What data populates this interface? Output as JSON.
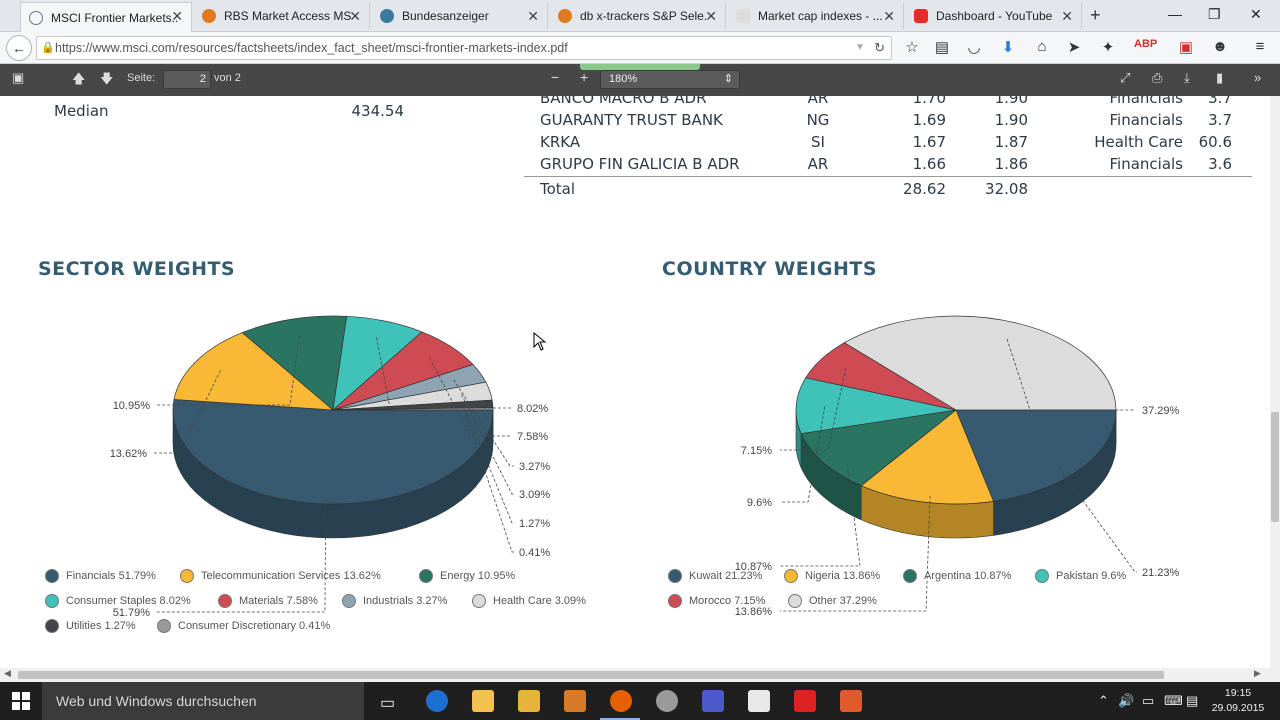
{
  "browser": {
    "tabs": [
      {
        "label": "MSCI Frontier Markets...",
        "active": true,
        "icon": "globe-icon",
        "color": "#6a7a8a"
      },
      {
        "label": "RBS Market Access MS...",
        "active": false,
        "icon": "firefox-icon",
        "color": "#e07a20"
      },
      {
        "label": "Bundesanzeiger",
        "active": false,
        "icon": "eagle-icon",
        "color": "#3a7a9a"
      },
      {
        "label": "db x-trackers S&P Sele...",
        "active": false,
        "icon": "firefox-icon",
        "color": "#e07a20"
      },
      {
        "label": "Market cap indexes - ...",
        "active": false,
        "icon": "blank-page-icon",
        "color": "#c8c8c8"
      },
      {
        "label": "Dashboard - YouTube",
        "active": false,
        "icon": "youtube-icon",
        "color": "#e52d27"
      }
    ],
    "url": "https://www.msci.com/resources/factsheets/index_fact_sheet/msci-frontier-markets-index.pdf"
  },
  "pdf_toolbar": {
    "page_label": "Seite:",
    "page_value": "2",
    "page_of": "von 2",
    "zoom": "180%"
  },
  "document": {
    "median_label": "Median",
    "median_value": "434.54",
    "holdings": [
      {
        "name": "BANCO MACRO B ADR",
        "country": "AR",
        "w1": "1.70",
        "w2": "1.90",
        "sector": "Financials",
        "val": "3.7"
      },
      {
        "name": "GUARANTY TRUST BANK",
        "country": "NG",
        "w1": "1.69",
        "w2": "1.90",
        "sector": "Financials",
        "val": "3.7"
      },
      {
        "name": "KRKA",
        "country": "SI",
        "w1": "1.67",
        "w2": "1.87",
        "sector": "Health Care",
        "val": "60.6"
      },
      {
        "name": "GRUPO FIN GALICIA B ADR",
        "country": "AR",
        "w1": "1.66",
        "w2": "1.86",
        "sector": "Financials",
        "val": "3.6"
      }
    ],
    "total": {
      "label": "Total",
      "w1": "28.62",
      "w2": "32.08"
    },
    "sector_title": "SECTOR WEIGHTS",
    "country_title": "COUNTRY WEIGHTS"
  },
  "chart_data": [
    {
      "type": "pie",
      "title": "SECTOR WEIGHTS",
      "slices": [
        {
          "label": "Financials",
          "value": 51.79,
          "display": "51.79%",
          "color": "#375a70"
        },
        {
          "label": "Telecommunication Services",
          "value": 13.62,
          "display": "13.62%",
          "color": "#f9b934"
        },
        {
          "label": "Energy",
          "value": 10.95,
          "display": "10.95%",
          "color": "#2a7462"
        },
        {
          "label": "Consumer Staples",
          "value": 8.02,
          "display": "8.02%",
          "color": "#3fc2b7"
        },
        {
          "label": "Materials",
          "value": 7.58,
          "display": "7.58%",
          "color": "#cf4b53"
        },
        {
          "label": "Industrials",
          "value": 3.27,
          "display": "3.27%",
          "color": "#8fa4b3"
        },
        {
          "label": "Health Care",
          "value": 3.09,
          "display": "3.09%",
          "color": "#dcdcdc"
        },
        {
          "label": "Utilities",
          "value": 1.27,
          "display": "1.27%",
          "color": "#3f4448"
        },
        {
          "label": "Consumer Discretionary",
          "value": 0.41,
          "display": "0.41%",
          "color": "#9a9a9a"
        }
      ],
      "legend": [
        "Financials 51.79%",
        "Telecommunication Services 13.62%",
        "Energy 10.95%",
        "Consumer Staples 8.02%",
        "Materials 7.58%",
        "Industrials 3.27%",
        "Health Care 3.09%",
        "Utilities 1.27%",
        "Consumer Discretionary 0.41%"
      ]
    },
    {
      "type": "pie",
      "title": "COUNTRY WEIGHTS",
      "slices": [
        {
          "label": "Kuwait",
          "value": 21.23,
          "display": "21.23%",
          "color": "#375a70"
        },
        {
          "label": "Nigeria",
          "value": 13.86,
          "display": "13.86%",
          "color": "#f9b934"
        },
        {
          "label": "Argentina",
          "value": 10.87,
          "display": "10.87%",
          "color": "#2a7462"
        },
        {
          "label": "Pakistan",
          "value": 9.6,
          "display": "9.6%",
          "color": "#3fc2b7"
        },
        {
          "label": "Morocco",
          "value": 7.15,
          "display": "7.15%",
          "color": "#cf4b53"
        },
        {
          "label": "Other",
          "value": 37.29,
          "display": "37.29%",
          "color": "#dcdcdc"
        }
      ],
      "legend": [
        "Kuwait 21.23%",
        "Nigeria 13.86%",
        "Argentina 10.87%",
        "Pakistan 9.6%",
        "Morocco 7.15%",
        "Other 37.29%"
      ]
    }
  ],
  "taskbar": {
    "search_placeholder": "Web und Windows durchsuchen",
    "time": "19:15",
    "date": "29.09.2015"
  }
}
